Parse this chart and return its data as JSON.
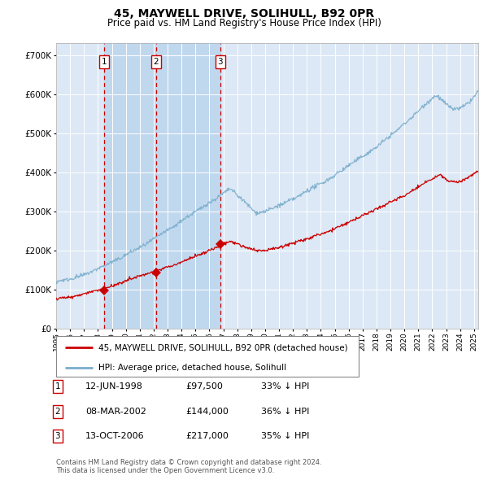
{
  "title": "45, MAYWELL DRIVE, SOLIHULL, B92 0PR",
  "subtitle": "Price paid vs. HM Land Registry's House Price Index (HPI)",
  "title_fontsize": 10,
  "subtitle_fontsize": 8.5,
  "fig_bg_color": "#ffffff",
  "plot_bg_color": "#dce8f5",
  "red_line_color": "#cc0000",
  "blue_line_color": "#7aadcc",
  "dashed_line_color": "#cc0000",
  "shade_color": "#c0d8ee",
  "purchases": [
    {
      "date_num": 1998.45,
      "price": 97500,
      "label": "1"
    },
    {
      "date_num": 2002.18,
      "price": 144000,
      "label": "2"
    },
    {
      "date_num": 2006.78,
      "price": 217000,
      "label": "3"
    }
  ],
  "table_rows": [
    {
      "num": "1",
      "date": "12-JUN-1998",
      "price": "£97,500",
      "pct": "33% ↓ HPI"
    },
    {
      "num": "2",
      "date": "08-MAR-2002",
      "price": "£144,000",
      "pct": "36% ↓ HPI"
    },
    {
      "num": "3",
      "date": "13-OCT-2006",
      "price": "£217,000",
      "pct": "35% ↓ HPI"
    }
  ],
  "legend_line1": "45, MAYWELL DRIVE, SOLIHULL, B92 0PR (detached house)",
  "legend_line2": "HPI: Average price, detached house, Solihull",
  "footer": "Contains HM Land Registry data © Crown copyright and database right 2024.\nThis data is licensed under the Open Government Licence v3.0.",
  "ylim": [
    0,
    730000
  ],
  "yticks": [
    0,
    100000,
    200000,
    300000,
    400000,
    500000,
    600000,
    700000
  ],
  "ytick_labels": [
    "£0",
    "£100K",
    "£200K",
    "£300K",
    "£400K",
    "£500K",
    "£600K",
    "£700K"
  ],
  "xlim_start": 1995.0,
  "xlim_end": 2025.3
}
